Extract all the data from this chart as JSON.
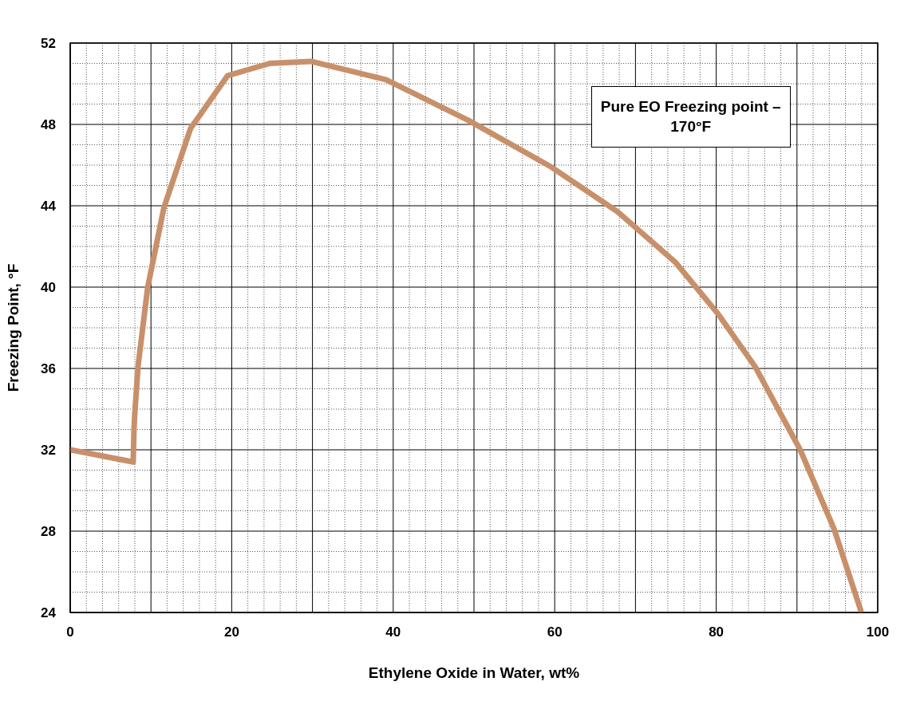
{
  "chart_data": {
    "type": "line",
    "xlabel": "Ethylene Oxide in Water, wt%",
    "ylabel": "Freezing Point, °F",
    "annotations": [
      "Pure EO Freezing point – 170°F"
    ],
    "xlim": [
      0,
      100
    ],
    "ylim": [
      24,
      52
    ],
    "xticks": [
      0,
      {
        "value": 2,
        "label": null
      },
      {
        "value": 4,
        "label": null
      },
      {
        "value": 6,
        "label": null
      },
      {
        "value": 8,
        "label": null
      },
      {
        "value": 10,
        "label": null
      },
      {
        "value": 12,
        "label": null
      },
      {
        "value": 14,
        "label": null
      },
      {
        "value": 16,
        "label": null
      },
      {
        "value": 18,
        "label": null
      },
      20,
      {
        "value": 22,
        "label": null
      },
      {
        "value": 24,
        "label": null
      },
      {
        "value": 26,
        "label": null
      },
      {
        "value": 28,
        "label": null
      },
      {
        "value": 30,
        "label": null
      },
      {
        "value": 32,
        "label": null
      },
      {
        "value": 34,
        "label": null
      },
      {
        "value": 36,
        "label": null
      },
      {
        "value": 38,
        "label": null
      },
      40,
      {
        "value": 42,
        "label": null
      },
      {
        "value": 44,
        "label": null
      },
      {
        "value": 46,
        "label": null
      },
      {
        "value": 48,
        "label": null
      },
      {
        "value": 50,
        "label": null
      },
      {
        "value": 52,
        "label": null
      },
      {
        "value": 54,
        "label": null
      },
      {
        "value": 56,
        "label": null
      },
      {
        "value": 58,
        "label": null
      },
      60,
      {
        "value": 62,
        "label": null
      },
      {
        "value": 64,
        "label": null
      },
      {
        "value": 66,
        "label": null
      },
      {
        "value": 68,
        "label": null
      },
      {
        "value": 70,
        "label": null
      },
      {
        "value": 72,
        "label": null
      },
      {
        "value": 74,
        "label": null
      },
      {
        "value": 76,
        "label": null
      },
      {
        "value": 78,
        "label": null
      },
      80,
      {
        "value": 82,
        "label": null
      },
      {
        "value": 84,
        "label": null
      },
      {
        "value": 86,
        "label": null
      },
      {
        "value": 88,
        "label": null
      },
      {
        "value": 90,
        "label": null
      },
      {
        "value": 92,
        "label": null
      },
      {
        "value": 94,
        "label": null
      },
      {
        "value": 96,
        "label": null
      },
      {
        "value": 98,
        "label": null
      },
      100
    ],
    "yticks": [
      24,
      {
        "value": 25,
        "label": null
      },
      {
        "value": 26,
        "label": null
      },
      {
        "value": 27,
        "label": null
      },
      28,
      {
        "value": 29,
        "label": null
      },
      {
        "value": 30,
        "label": null
      },
      {
        "value": 31,
        "label": null
      },
      32,
      {
        "value": 33,
        "label": null
      },
      {
        "value": 34,
        "label": null
      },
      {
        "value": 35,
        "label": null
      },
      36,
      {
        "value": 37,
        "label": null
      },
      {
        "value": 38,
        "label": null
      },
      {
        "value": 39,
        "label": null
      },
      40,
      {
        "value": 41,
        "label": null
      },
      {
        "value": 42,
        "label": null
      },
      {
        "value": 43,
        "label": null
      },
      44,
      {
        "value": 45,
        "label": null
      },
      {
        "value": 46,
        "label": null
      },
      {
        "value": 47,
        "label": null
      },
      48,
      {
        "value": 49,
        "label": null
      },
      {
        "value": 50,
        "label": null
      },
      {
        "value": 51,
        "label": null
      },
      52
    ],
    "grid": true,
    "marker": "none",
    "line_style": "solid",
    "x": [
      0,
      7.8,
      7.9,
      8.0,
      8.4,
      9.6,
      11.6,
      14.9,
      19.5,
      24.7,
      29.8,
      39.1,
      49.3,
      59.6,
      67.8,
      75.0,
      80.2,
      84.8,
      90.4,
      94.6,
      97.9
    ],
    "series": [
      {
        "color": "#c8906a",
        "values": [
          32.0,
          31.4,
          33.0,
          33.8,
          36.1,
          40.0,
          43.9,
          47.8,
          50.4,
          51.0,
          51.1,
          50.2,
          48.2,
          45.9,
          43.7,
          41.2,
          38.7,
          36.1,
          32.0,
          28.1,
          24.1
        ]
      }
    ]
  }
}
